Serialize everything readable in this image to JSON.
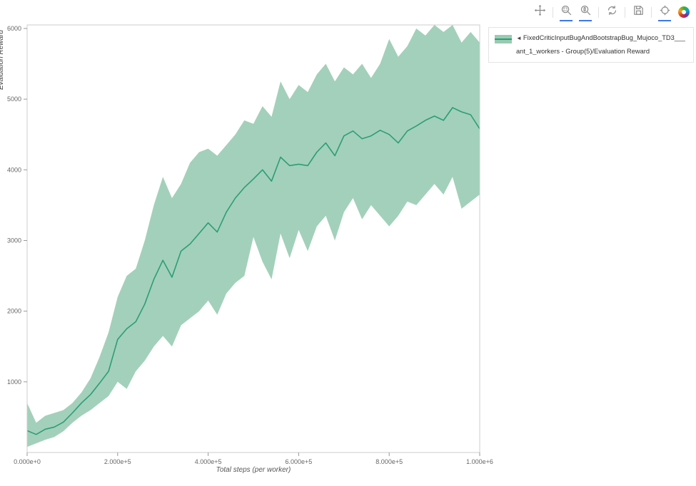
{
  "figure": {
    "background": "#ffffff"
  },
  "toolbar": {
    "active_color": "#3c78e7",
    "icon_color": "#8a8a8a",
    "items": [
      {
        "name": "pan",
        "active": false
      },
      {
        "name": "box-zoom",
        "active": true
      },
      {
        "name": "wheel-zoom",
        "active": true
      },
      {
        "name": "reset",
        "active": false
      },
      {
        "name": "save",
        "active": false
      },
      {
        "name": "hover",
        "active": true
      },
      {
        "name": "logo",
        "active": false
      }
    ]
  },
  "legend": {
    "marker": "◄",
    "line1": "FixedCriticInputBugAndBootstrapBug_Mujoco_TD3___",
    "line2": "ant_1_workers - Group(5)/Evaluation Reward"
  },
  "chart_data": {
    "type": "line",
    "title": "",
    "xlabel": "Total steps (per worker)",
    "ylabel": "Evaluation Reward",
    "xlim": [
      0,
      1000000
    ],
    "ylim": [
      0,
      6050
    ],
    "grid": false,
    "legend_position": "top-right-outside",
    "xticks": [
      {
        "v": 0,
        "label": "0.000e+0"
      },
      {
        "v": 200000,
        "label": "2.000e+5"
      },
      {
        "v": 400000,
        "label": "4.000e+5"
      },
      {
        "v": 600000,
        "label": "6.000e+5"
      },
      {
        "v": 800000,
        "label": "8.000e+5"
      },
      {
        "v": 1000000,
        "label": "1.000e+6"
      }
    ],
    "yticks": [
      {
        "v": 1000,
        "label": "1000"
      },
      {
        "v": 2000,
        "label": "2000"
      },
      {
        "v": 3000,
        "label": "3000"
      },
      {
        "v": 4000,
        "label": "4000"
      },
      {
        "v": 5000,
        "label": "5000"
      },
      {
        "v": 6000,
        "label": "6000"
      }
    ],
    "series": [
      {
        "name": "FixedCriticInputBugAndBootstrapBug_Mujoco_TD3___ant_1_workers - Group(5)/Evaluation Reward",
        "color": "#2b9e77",
        "band_color": "#99cbb2",
        "x": [
          0,
          20000,
          40000,
          60000,
          80000,
          100000,
          120000,
          140000,
          160000,
          180000,
          200000,
          220000,
          240000,
          260000,
          280000,
          300000,
          320000,
          340000,
          360000,
          380000,
          400000,
          420000,
          440000,
          460000,
          480000,
          500000,
          520000,
          540000,
          560000,
          580000,
          600000,
          620000,
          640000,
          660000,
          680000,
          700000,
          720000,
          740000,
          760000,
          780000,
          800000,
          820000,
          840000,
          860000,
          880000,
          900000,
          920000,
          940000,
          960000,
          980000,
          1000000
        ],
        "mean": [
          310,
          255,
          330,
          360,
          430,
          560,
          700,
          820,
          980,
          1150,
          1600,
          1750,
          1850,
          2100,
          2450,
          2720,
          2480,
          2850,
          2950,
          3100,
          3250,
          3120,
          3400,
          3600,
          3750,
          3870,
          4000,
          3840,
          4180,
          4060,
          4080,
          4060,
          4250,
          4380,
          4200,
          4480,
          4550,
          4440,
          4480,
          4560,
          4500,
          4380,
          4550,
          4620,
          4700,
          4760,
          4700,
          4880,
          4820,
          4780,
          4580
        ],
        "upper": [
          700,
          420,
          520,
          560,
          600,
          700,
          850,
          1050,
          1350,
          1700,
          2200,
          2500,
          2600,
          3000,
          3500,
          3900,
          3600,
          3800,
          4100,
          4250,
          4300,
          4200,
          4350,
          4500,
          4700,
          4650,
          4900,
          4750,
          5250,
          5000,
          5200,
          5100,
          5350,
          5500,
          5250,
          5450,
          5350,
          5500,
          5300,
          5500,
          5850,
          5600,
          5750,
          6000,
          5900,
          6050,
          5950,
          6050,
          5800,
          5950,
          5800
        ],
        "lower": [
          80,
          130,
          180,
          220,
          300,
          420,
          520,
          600,
          700,
          800,
          1000,
          900,
          1150,
          1300,
          1500,
          1650,
          1500,
          1800,
          1900,
          2000,
          2150,
          1950,
          2250,
          2400,
          2500,
          3050,
          2700,
          2450,
          3100,
          2750,
          3150,
          2850,
          3200,
          3350,
          3000,
          3400,
          3600,
          3300,
          3500,
          3350,
          3200,
          3350,
          3550,
          3500,
          3650,
          3800,
          3650,
          3900,
          3450,
          3550,
          3650
        ]
      }
    ]
  }
}
